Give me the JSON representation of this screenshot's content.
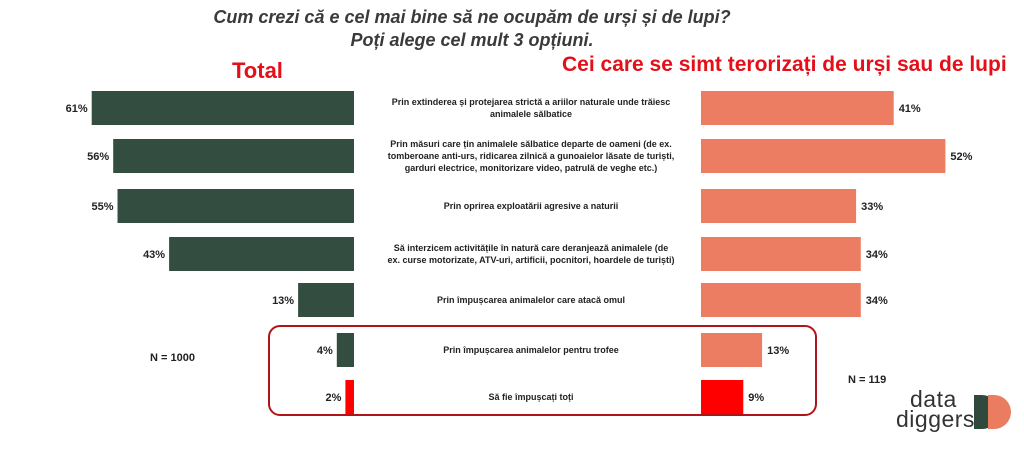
{
  "title": {
    "line1": "Cum crezi că e cel mai bine să ne ocupăm de urși și de lupi?",
    "line2": "Poți alege cel mult 3 opțiuni."
  },
  "headers": {
    "left": "Total",
    "right": "Cei care se simt terorizați de urși sau de lupi"
  },
  "sample": {
    "left": "N = 1000",
    "right": "N = 119"
  },
  "logo": {
    "word1": "data",
    "word2": "diggers"
  },
  "colors": {
    "total": "#344d41",
    "total_highlight": "#ff0000",
    "segment": "#ec7d62",
    "segment_highlight": "#ff0000",
    "box": "#b01418",
    "logo_dark": "#2f4a3d",
    "logo_orange": "#ea7c5f"
  },
  "chart_data": {
    "type": "bar",
    "categories": [
      [
        "Prin extinderea și protejarea strictă a ariilor naturale unde trăiesc",
        "animalele sălbatice"
      ],
      [
        "Prin măsuri care țin animalele sălbatice departe de oameni (de ex.",
        "tomberoane anti-urs, ridicarea zilnică a gunoaielor lăsate de turiști,",
        "garduri electrice, monitorizare video, patrulă de veghe etc.)"
      ],
      [
        "Prin oprirea exploatării agresive a naturii"
      ],
      [
        "Să interzicem activitățile în natură care deranjează animalele (de",
        "ex. curse motorizate, ATV-uri, artificii, pocnitori, hoardele de turiști)"
      ],
      [
        "Prin împușcarea animalelor care atacă omul"
      ],
      [
        "Prin împușcarea animalelor pentru trofee"
      ],
      [
        "Să fie împușcați toți"
      ]
    ],
    "series": [
      {
        "name": "Total",
        "values": [
          61,
          56,
          55,
          43,
          13,
          4,
          2
        ]
      },
      {
        "name": "Cei care se simt terorizați de urși sau de lupi",
        "values": [
          41,
          52,
          33,
          34,
          34,
          13,
          9
        ]
      }
    ],
    "unit": "%",
    "highlighted_categories": [
      5,
      6
    ]
  }
}
